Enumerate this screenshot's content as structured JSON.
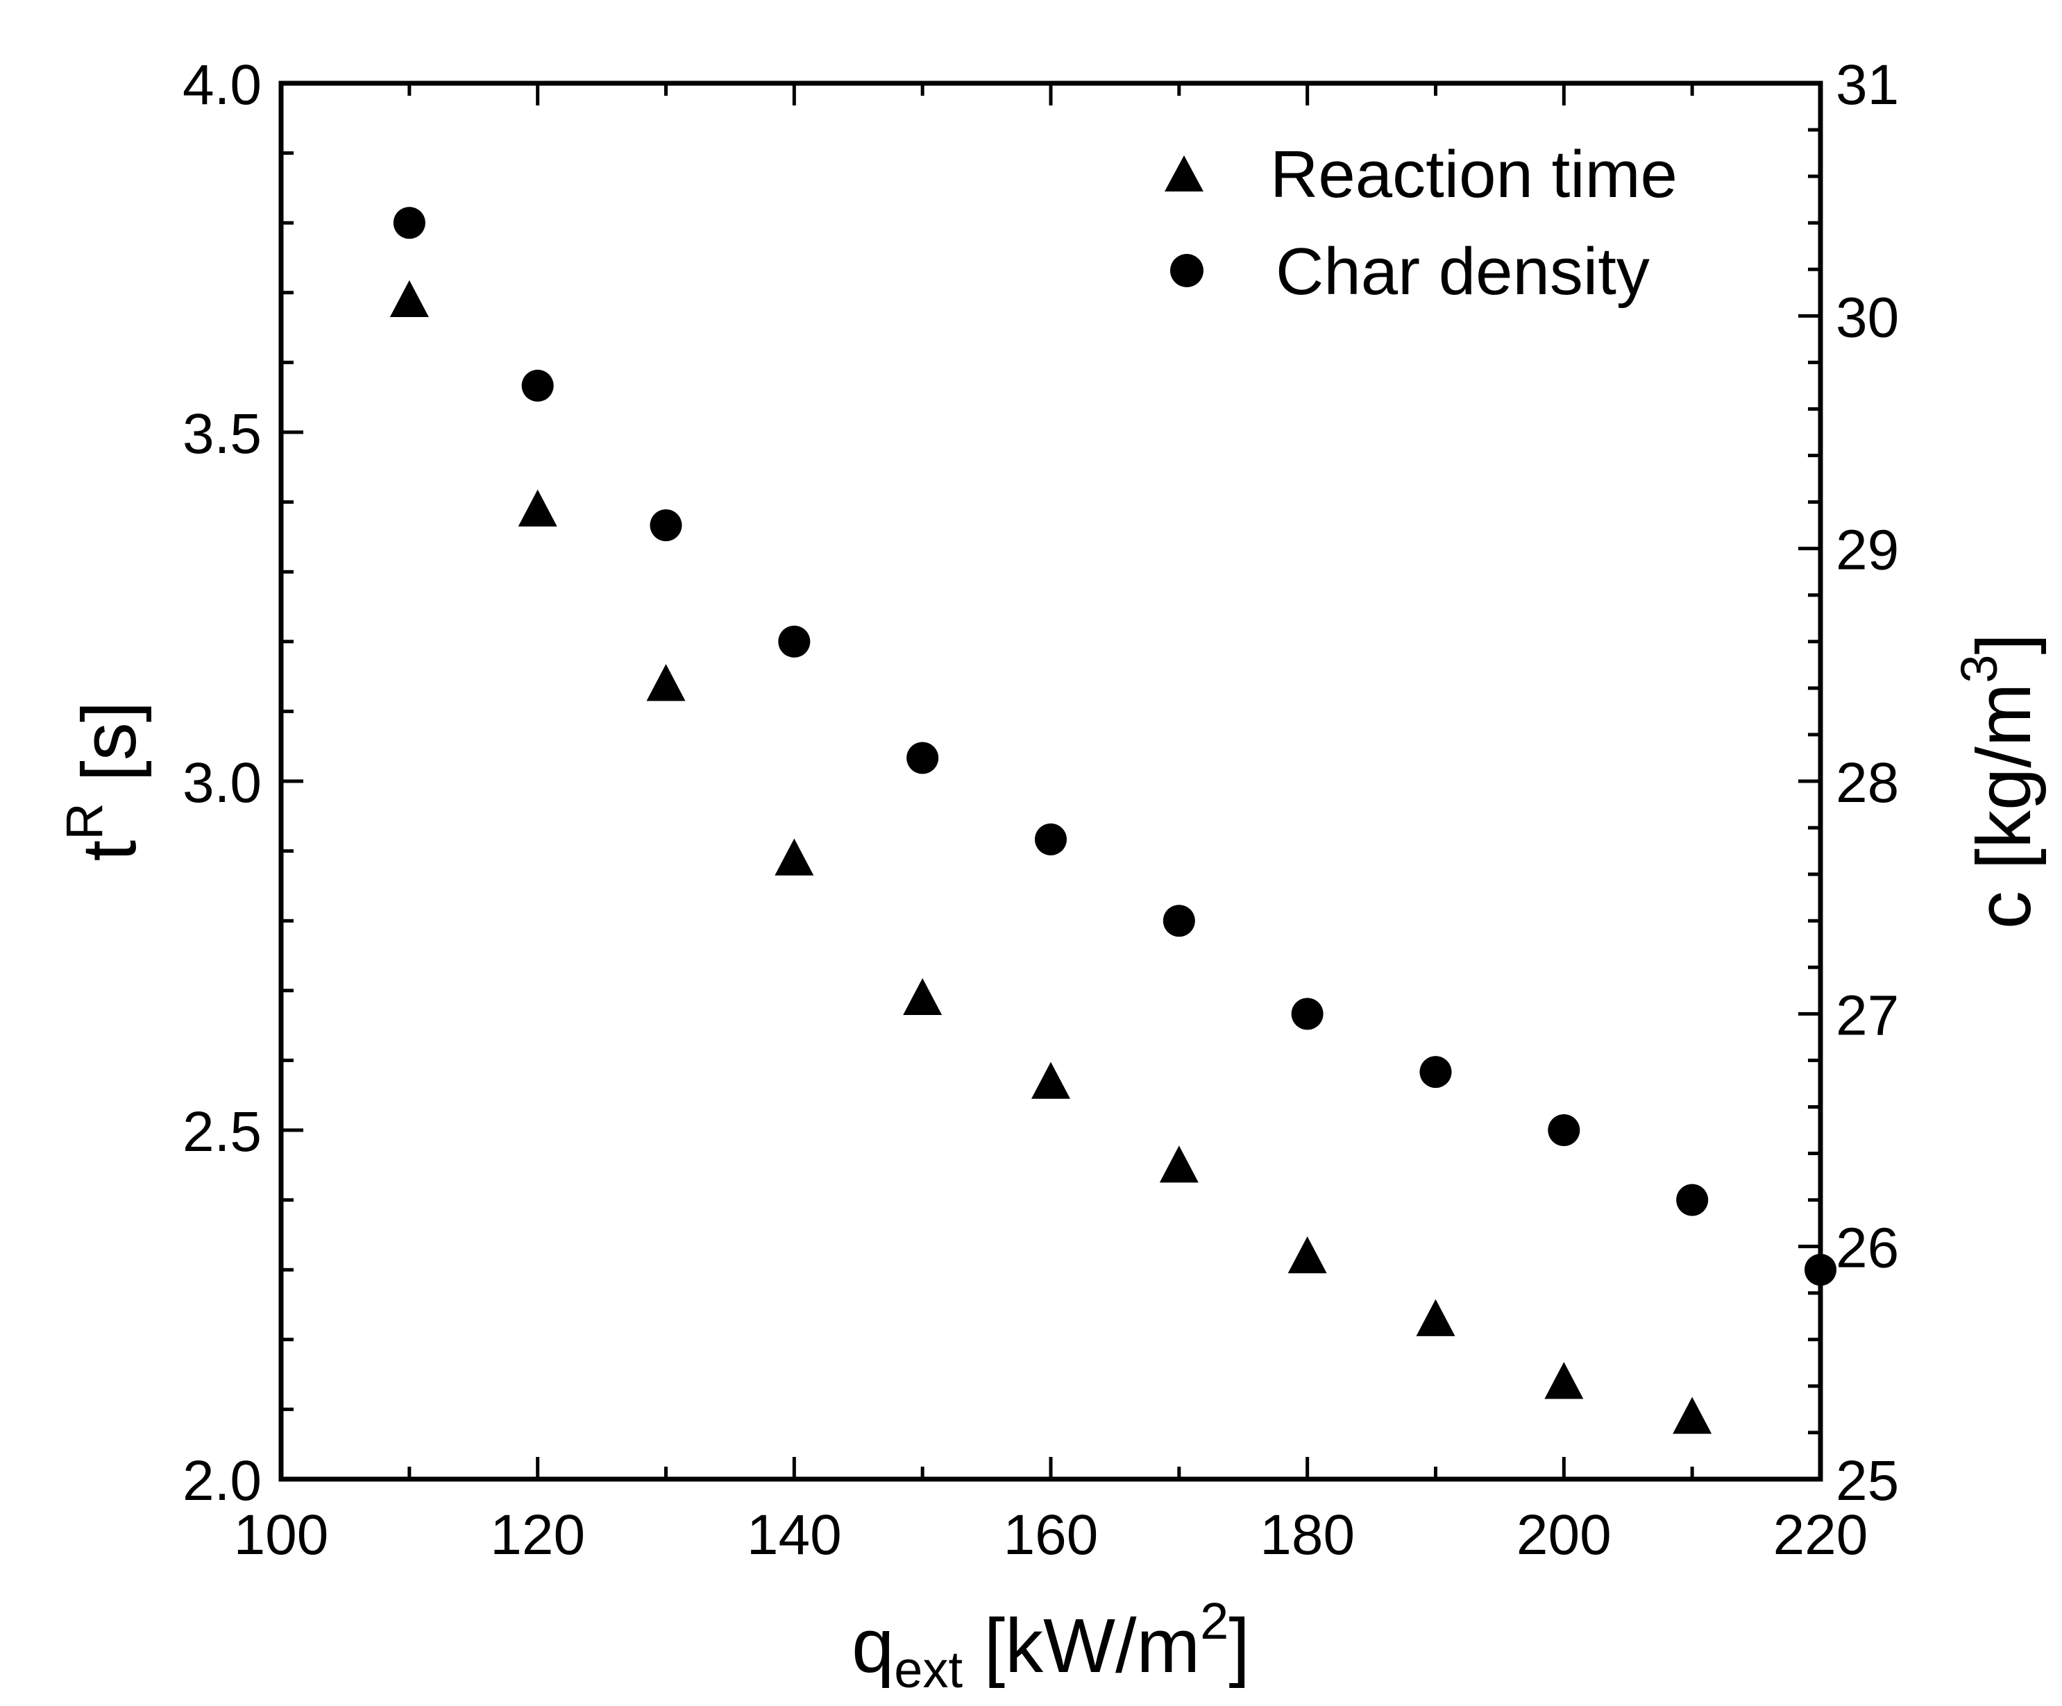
{
  "chart_data": {
    "type": "scatter",
    "xlabel": {
      "base": "q",
      "sub": "ext",
      "unit_prefix": " [kW/m",
      "unit_sup": "2",
      "unit_suffix": "]"
    },
    "ylabel_left": {
      "base": "t",
      "sup": "R",
      "rest": " [s]"
    },
    "ylabel_right": {
      "base": "c [kg/m",
      "sup": "3",
      "rest": "]"
    },
    "xlim": [
      100,
      220
    ],
    "ylim_left": [
      2.0,
      4.0
    ],
    "ylim_right": [
      25,
      31
    ],
    "x_ticks": [
      "100",
      "120",
      "140",
      "160",
      "180",
      "200",
      "220"
    ],
    "y_left_ticks": [
      "2.0",
      "2.5",
      "3.0",
      "3.5",
      "4.0"
    ],
    "y_right_ticks": [
      "25",
      "26",
      "27",
      "28",
      "29",
      "30",
      "31"
    ],
    "legend_position": "top-right",
    "grid": false,
    "series": [
      {
        "name": "Reaction time",
        "marker": "triangle",
        "axis": "left",
        "color": "#000000",
        "x": [
          110,
          120,
          130,
          140,
          150,
          160,
          170,
          180,
          190,
          200,
          210
        ],
        "y": [
          3.69,
          3.39,
          3.14,
          2.89,
          2.69,
          2.57,
          2.45,
          2.32,
          2.23,
          2.14,
          2.09
        ]
      },
      {
        "name": "Char density",
        "marker": "circle",
        "axis": "right",
        "color": "#000000",
        "x": [
          110,
          120,
          130,
          140,
          150,
          160,
          170,
          180,
          190,
          200,
          210,
          220
        ],
        "y": [
          30.4,
          29.7,
          29.1,
          28.6,
          28.1,
          27.75,
          27.4,
          27.0,
          26.75,
          26.5,
          26.2,
          25.9
        ]
      }
    ]
  }
}
